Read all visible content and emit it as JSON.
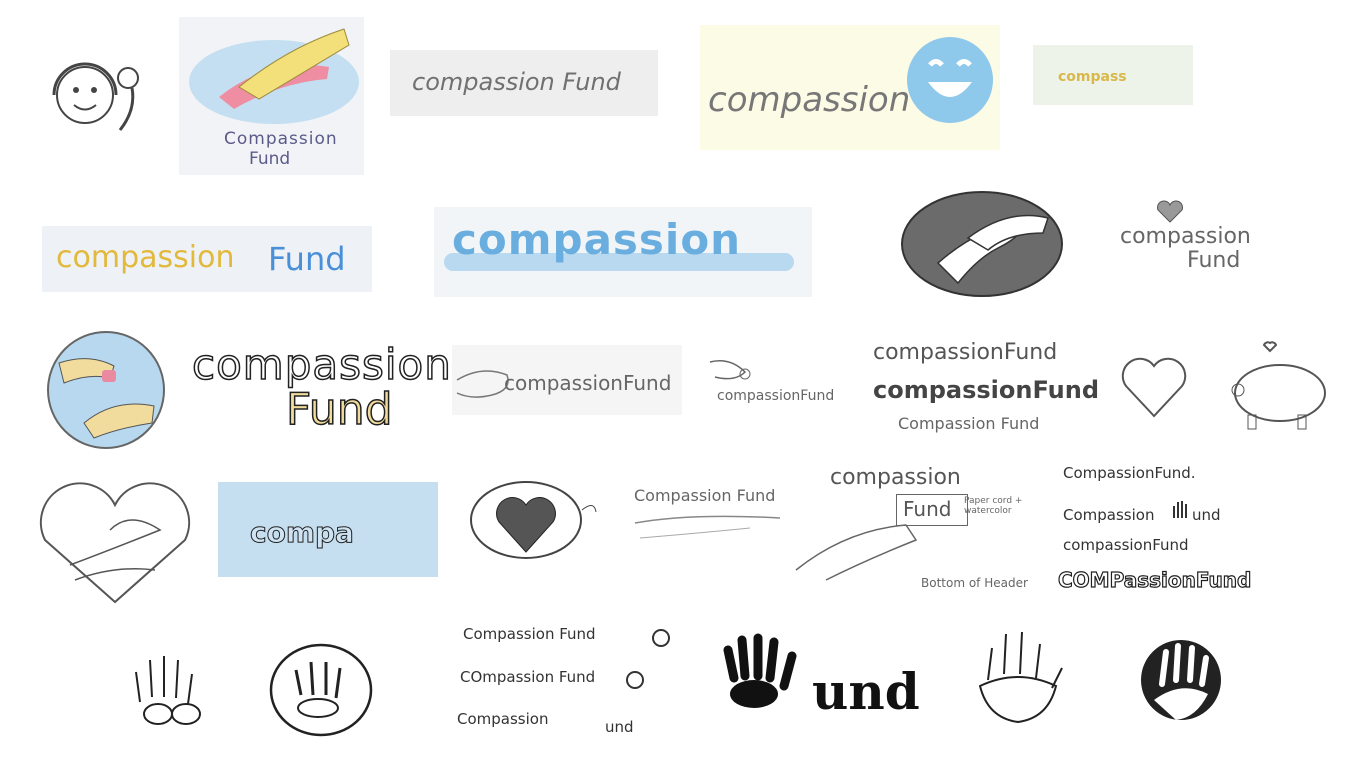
{
  "brand": {
    "full": "compassion Fund",
    "word1": "compassion",
    "word2": "Fund",
    "short": "compass",
    "compa": "compa",
    "und": "und"
  },
  "sketches": {
    "r1_s2_line1": "Compassion",
    "r1_s2_line2": "Fund",
    "r1_s3": "compassion Fund",
    "r1_s4": "compassion",
    "r1_s5": "compass",
    "r2_s1_a": "compassion",
    "r2_s1_b": "Fund",
    "r2_s2": "compassion",
    "r2_s4_a": "compassion",
    "r2_s4_b": "Fund",
    "r3_s2_a": "compassion",
    "r3_s2_b": "Fund",
    "r3_s3": "compassionFund",
    "r3_s4": "compassionFund",
    "r3_s5_a": "compassionFund",
    "r3_s5_b": "compassionFund",
    "r3_s5_c": "Compassion Fund",
    "r4_s2": "compa",
    "r4_s4": "Compassion Fund",
    "r4_s5_a": "compassion",
    "r4_s5_b": "Fund",
    "r4_s5_note": "Paper cord + watercolor",
    "r4_s5_bottom": "Bottom of Header",
    "r4_s6_a": "CompassionFund.",
    "r4_s6_b": "Compassion",
    "r4_s6_b2": "und",
    "r4_s6_c": "compassionFund",
    "r4_s6_d": "COMPassionFund",
    "r5_s3_a": "Compassion Fund",
    "r5_s3_b": "COmpassion Fund",
    "r5_s3_c": "Compassion",
    "r5_s3_c2": "und",
    "r5_s4": "und"
  },
  "colors": {
    "yellow": "#e2b93b",
    "blue": "#4a90d9",
    "lightblue": "#a9d2ec",
    "pink": "#e98aa0",
    "pencil": "#666666",
    "ink": "#111111"
  }
}
